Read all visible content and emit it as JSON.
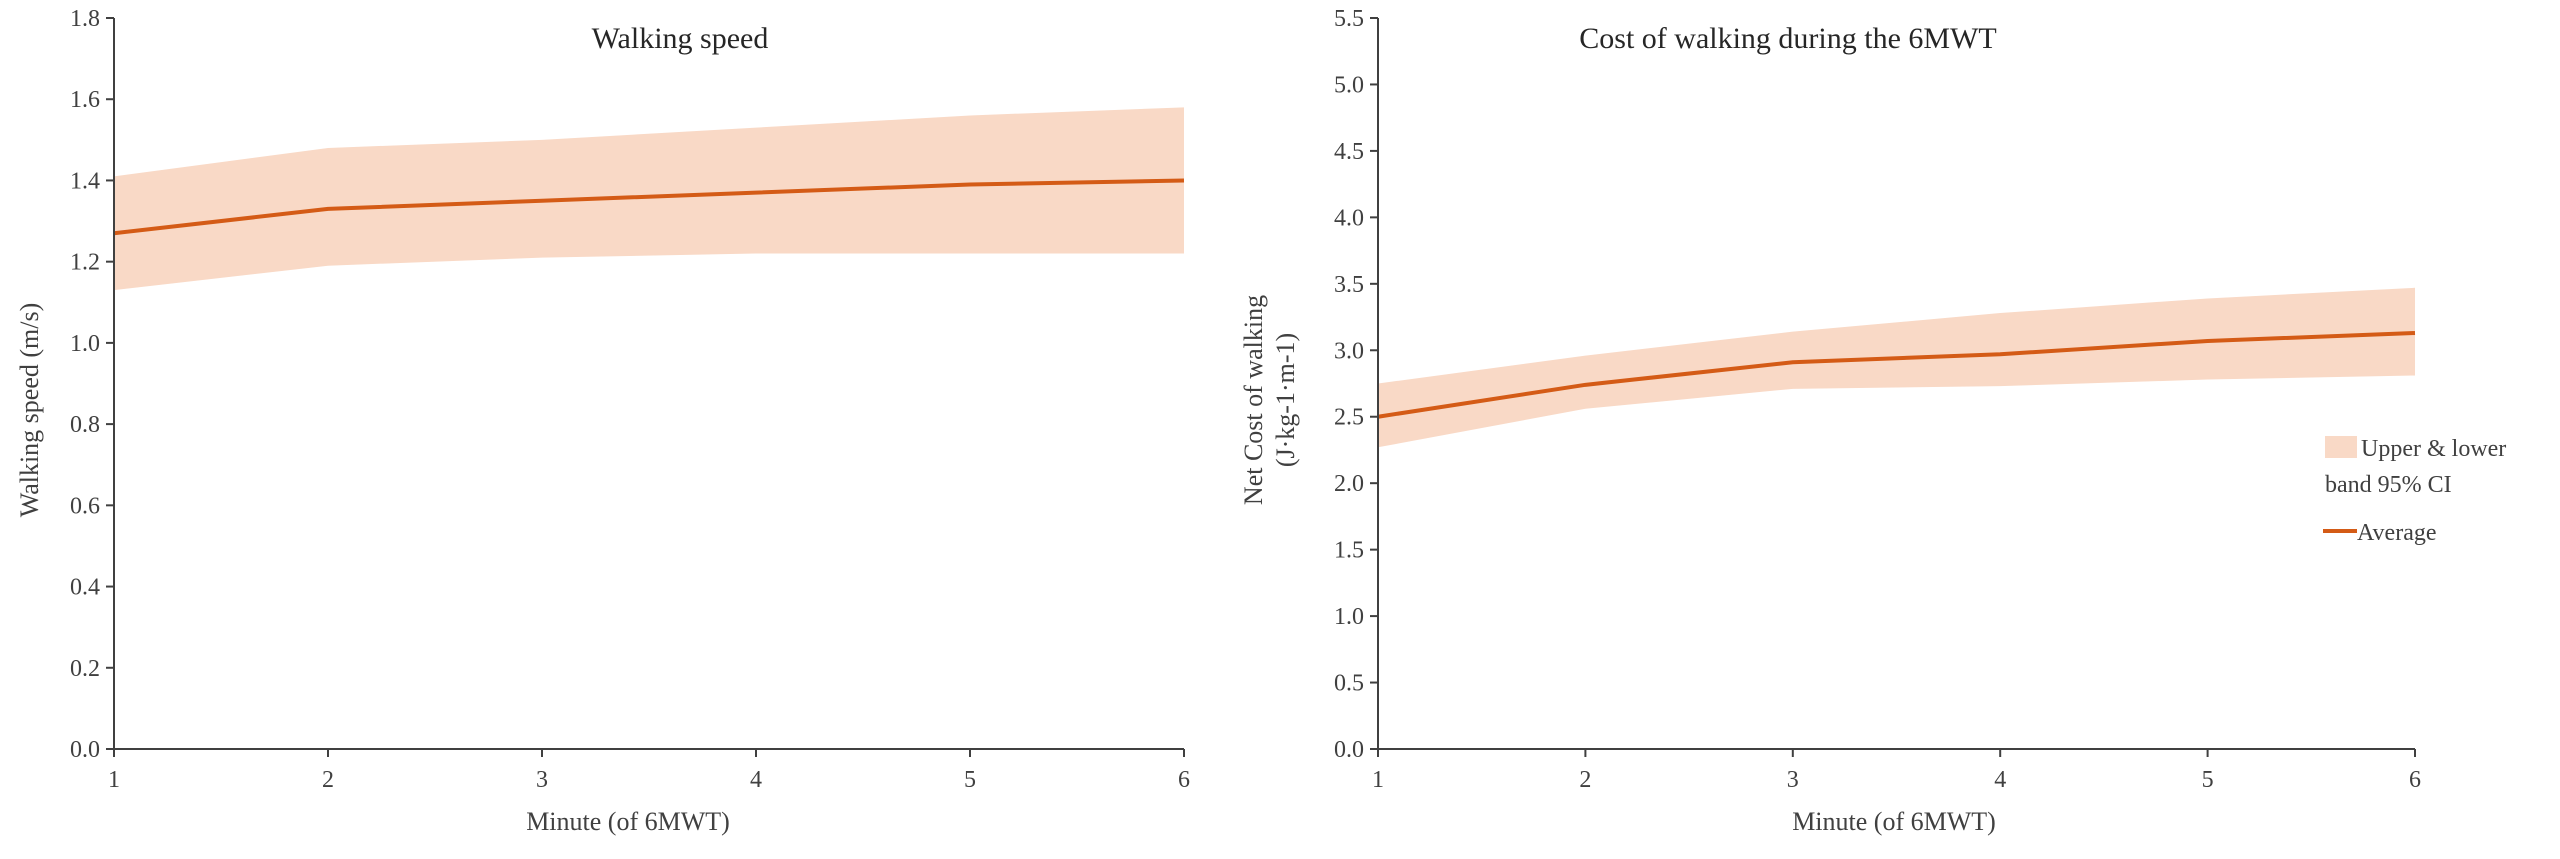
{
  "colors": {
    "line": "#d45b16",
    "band": "#f9d9c6",
    "axis": "#404040",
    "text": "#404040"
  },
  "chart_data": [
    {
      "type": "line",
      "title": "Walking speed",
      "xlabel": "Minute (of 6MWT)",
      "ylabel": "Walking speed (m/s)",
      "x": [
        1,
        2,
        3,
        4,
        5,
        6
      ],
      "xlim": [
        1,
        6
      ],
      "ylim": [
        0,
        1.8
      ],
      "yticks": [
        "0.0",
        "0.2",
        "0.4",
        "0.6",
        "0.8",
        "1.0",
        "1.2",
        "1.4",
        "1.6",
        "1.8"
      ],
      "xticks": [
        "1",
        "2",
        "3",
        "4",
        "5",
        "6"
      ],
      "grid": false,
      "series": [
        {
          "name": "Average",
          "kind": "line",
          "values": [
            1.27,
            1.33,
            1.35,
            1.37,
            1.39,
            1.4
          ]
        },
        {
          "name": "Upper & lower band 95% CI",
          "kind": "band",
          "lower": [
            1.13,
            1.19,
            1.21,
            1.22,
            1.22,
            1.22
          ],
          "upper": [
            1.41,
            1.48,
            1.5,
            1.53,
            1.56,
            1.58
          ]
        }
      ]
    },
    {
      "type": "line",
      "title": "Cost of walking during the 6MWT",
      "xlabel": "Minute (of 6MWT)",
      "ylabel": "Net Cost of walking",
      "ylabel2": "(J·kg-1·m-1)",
      "x": [
        1,
        2,
        3,
        4,
        5,
        6
      ],
      "xlim": [
        1,
        6
      ],
      "ylim": [
        0,
        5.5
      ],
      "yticks": [
        "0.0",
        "0.5",
        "1.0",
        "1.5",
        "2.0",
        "2.5",
        "3.0",
        "3.5",
        "4.0",
        "4.5",
        "5.0",
        "5.5"
      ],
      "xticks": [
        "1",
        "2",
        "3",
        "4",
        "5",
        "6"
      ],
      "grid": false,
      "legend": "right",
      "series": [
        {
          "name": "Average",
          "kind": "line",
          "values": [
            2.5,
            2.74,
            2.91,
            2.97,
            3.07,
            3.13
          ]
        },
        {
          "name": "Upper & lower band 95% CI",
          "kind": "band",
          "lower": [
            2.27,
            2.56,
            2.71,
            2.73,
            2.78,
            2.81
          ],
          "upper": [
            2.75,
            2.96,
            3.14,
            3.28,
            3.39,
            3.47
          ]
        }
      ]
    }
  ],
  "legend": {
    "band_label_line1": "Upper & lower",
    "band_label_line2": "band 95% CI",
    "line_label": "Average"
  }
}
